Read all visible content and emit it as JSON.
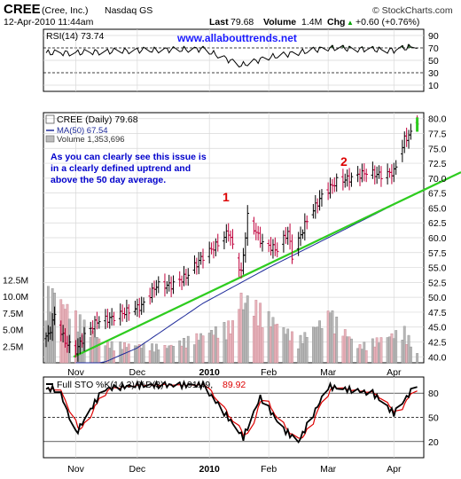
{
  "header": {
    "symbol": "CREE",
    "company": "(Cree, Inc.)",
    "exchange": "Nasdaq GS",
    "date": "12-Apr-2010 11:44am",
    "copyright": "© StockCharts.com",
    "last_label": "Last",
    "last": "79.68",
    "volume_label": "Volume",
    "volume": "1.4M",
    "chg_label": "Chg",
    "chg": "+0.60 (+0.76%)",
    "chg_arrow": "▲"
  },
  "rsi": {
    "label": "RSI(14) 73.74",
    "watermark": "www.allabouttrends.net",
    "ticks": [
      90,
      70,
      50,
      30,
      10
    ],
    "fill_color": "#3a6e3a"
  },
  "price": {
    "legend_title": "CREE (Daily) 79.68",
    "legend_ma": "MA(50) 67.54",
    "legend_volume": "Volume 1,353,696",
    "annotation_lines": [
      "As you can clearly see this issue is",
      "in a clearly defined uptrend and",
      "above the 50 day average."
    ],
    "label_1": "1",
    "label_2": "2",
    "price_ticks": [
      "80.0",
      "77.5",
      "75.0",
      "72.5",
      "70.0",
      "67.5",
      "65.0",
      "62.5",
      "60.0",
      "57.5",
      "55.0",
      "52.5",
      "50.0",
      "47.5",
      "45.0",
      "42.5",
      "40.0"
    ],
    "volume_ticks": [
      "12.5M",
      "10.0M",
      "7.5M",
      "5.0M",
      "2.5M"
    ],
    "colors": {
      "up": "#000000",
      "down": "#c0003c",
      "ma": "#1f2b9a",
      "trendline": "#2ecc1f",
      "annotation": "#0000cc",
      "label": "#dd0000"
    }
  },
  "sto": {
    "label_prefix": "Full STO %K(14,3) %D(3)",
    "k_value": "91.49,",
    "d_value": "89.92",
    "ticks": [
      80,
      50,
      20
    ],
    "colors": {
      "k": "#000000",
      "d": "#dd0000"
    }
  },
  "x_axis": {
    "months": [
      "Nov",
      "Dec",
      "2010",
      "Feb",
      "Mar",
      "Apr"
    ]
  },
  "chart_data": {
    "type": "candlestick",
    "title": "CREE (Daily) 79.68",
    "period": "Oct 2009 – 12 Apr 2010",
    "ylim_price": [
      39,
      81
    ],
    "series": [
      {
        "name": "CREE (Daily)",
        "type": "ohlc",
        "approx_close": [
          {
            "x": "2009-10-20",
            "y": 43.5
          },
          {
            "x": "2009-10-23",
            "y": 47.0
          },
          {
            "x": "2009-10-28",
            "y": 42.5
          },
          {
            "x": "2009-11-02",
            "y": 41.0
          },
          {
            "x": "2009-11-06",
            "y": 43.5
          },
          {
            "x": "2009-11-12",
            "y": 46.0
          },
          {
            "x": "2009-11-19",
            "y": 46.5
          },
          {
            "x": "2009-11-25",
            "y": 47.5
          },
          {
            "x": "2009-12-03",
            "y": 48.5
          },
          {
            "x": "2009-12-10",
            "y": 52.0
          },
          {
            "x": "2009-12-17",
            "y": 52.0
          },
          {
            "x": "2009-12-24",
            "y": 53.5
          },
          {
            "x": "2009-12-31",
            "y": 56.5
          },
          {
            "x": "2010-01-08",
            "y": 59.0
          },
          {
            "x": "2010-01-13",
            "y": 61.0
          },
          {
            "x": "2010-01-19",
            "y": 54.0
          },
          {
            "x": "2010-01-22",
            "y": 63.5
          },
          {
            "x": "2010-01-29",
            "y": 59.0
          },
          {
            "x": "2010-02-05",
            "y": 58.0
          },
          {
            "x": "2010-02-10",
            "y": 61.0
          },
          {
            "x": "2010-02-12",
            "y": 57.0
          },
          {
            "x": "2010-02-19",
            "y": 63.0
          },
          {
            "x": "2010-02-26",
            "y": 67.0
          },
          {
            "x": "2010-03-05",
            "y": 69.5
          },
          {
            "x": "2010-03-12",
            "y": 70.0
          },
          {
            "x": "2010-03-19",
            "y": 71.0
          },
          {
            "x": "2010-03-26",
            "y": 70.5
          },
          {
            "x": "2010-04-01",
            "y": 71.0
          },
          {
            "x": "2010-04-06",
            "y": 76.5
          },
          {
            "x": "2010-04-09",
            "y": 77.5
          },
          {
            "x": "2010-04-12",
            "y": 79.68
          }
        ]
      },
      {
        "name": "MA(50)",
        "type": "line",
        "approx": [
          {
            "x": "2009-11-02",
            "y": 37.0
          },
          {
            "x": "2009-12-01",
            "y": 41.5
          },
          {
            "x": "2010-01-01",
            "y": 49.0
          },
          {
            "x": "2010-02-01",
            "y": 55.0
          },
          {
            "x": "2010-03-01",
            "y": 60.0
          },
          {
            "x": "2010-04-12",
            "y": 67.54
          }
        ]
      },
      {
        "name": "Trendline",
        "type": "line",
        "approx": [
          {
            "x": "2009-11-01",
            "y": 40.0
          },
          {
            "x": "2010-04-12",
            "y": 67.5
          }
        ]
      }
    ],
    "volume": {
      "name": "Volume",
      "last": 1353696,
      "ylim": [
        0,
        14000000
      ],
      "approx_millions": [
        {
          "x": "2009-10-23",
          "y": 10.5
        },
        {
          "x": "2009-11-15",
          "y": 3.0
        },
        {
          "x": "2009-12-15",
          "y": 2.5
        },
        {
          "x": "2010-01-15",
          "y": 6.0
        },
        {
          "x": "2010-01-19",
          "y": 10.5
        },
        {
          "x": "2010-02-15",
          "y": 3.5
        },
        {
          "x": "2010-03-02",
          "y": 7.5
        },
        {
          "x": "2010-03-15",
          "y": 2.5
        },
        {
          "x": "2010-04-06",
          "y": 5.0
        },
        {
          "x": "2010-04-12",
          "y": 1.35
        }
      ]
    },
    "rsi": {
      "name": "RSI(14)",
      "last": 73.74,
      "ylim": [
        0,
        100
      ],
      "approx": [
        {
          "x": "2009-11-01",
          "y": 62
        },
        {
          "x": "2009-12-01",
          "y": 66
        },
        {
          "x": "2010-01-01",
          "y": 68
        },
        {
          "x": "2010-01-19",
          "y": 42
        },
        {
          "x": "2010-02-01",
          "y": 55
        },
        {
          "x": "2010-03-01",
          "y": 70
        },
        {
          "x": "2010-04-01",
          "y": 66
        },
        {
          "x": "2010-04-12",
          "y": 73.74
        }
      ]
    },
    "full_sto": {
      "k_last": 91.49,
      "d_last": 89.92,
      "ylim": [
        0,
        100
      ],
      "approx_k": [
        {
          "x": "2009-10-25",
          "y": 85
        },
        {
          "x": "2009-11-02",
          "y": 30
        },
        {
          "x": "2009-11-15",
          "y": 85
        },
        {
          "x": "2009-12-01",
          "y": 90
        },
        {
          "x": "2010-01-01",
          "y": 90
        },
        {
          "x": "2010-01-20",
          "y": 25
        },
        {
          "x": "2010-01-28",
          "y": 75
        },
        {
          "x": "2010-02-08",
          "y": 35
        },
        {
          "x": "2010-02-15",
          "y": 20
        },
        {
          "x": "2010-03-01",
          "y": 88
        },
        {
          "x": "2010-03-22",
          "y": 80
        },
        {
          "x": "2010-04-01",
          "y": 55
        },
        {
          "x": "2010-04-12",
          "y": 91.49
        }
      ]
    },
    "x_labels": [
      "Nov",
      "Dec",
      "2010",
      "Feb",
      "Mar",
      "Apr"
    ],
    "annotations": [
      "1",
      "2",
      "As you can clearly see this issue is in a clearly defined uptrend and above the 50 day average."
    ]
  }
}
